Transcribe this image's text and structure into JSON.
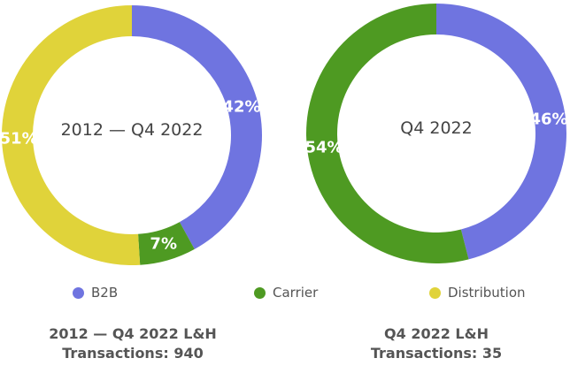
{
  "colors": {
    "B2B": "#6f74e0",
    "Carrier": "#4e9a22",
    "Distribution": "#e0d33a"
  },
  "chart_data": [
    {
      "type": "pie",
      "title": "2012 — Q4 2022",
      "categories": [
        "B2B",
        "Carrier",
        "Distribution"
      ],
      "values": [
        42,
        7,
        51
      ],
      "labels": [
        "42%",
        "7%",
        "51%"
      ],
      "caption_line1": "2012 — Q4 2022 L&H",
      "caption_line2": "Transactions: 940"
    },
    {
      "type": "pie",
      "title": "Q4 2022",
      "categories": [
        "B2B",
        "Carrier"
      ],
      "values": [
        46,
        54
      ],
      "labels": [
        "46%",
        "54%"
      ],
      "caption_line1": "Q4 2022 L&H",
      "caption_line2": "Transactions: 35"
    }
  ],
  "legend": {
    "items": [
      {
        "label": "B2B",
        "color_key": "B2B"
      },
      {
        "label": "Carrier",
        "color_key": "Carrier"
      },
      {
        "label": "Distribution",
        "color_key": "Distribution"
      }
    ]
  }
}
